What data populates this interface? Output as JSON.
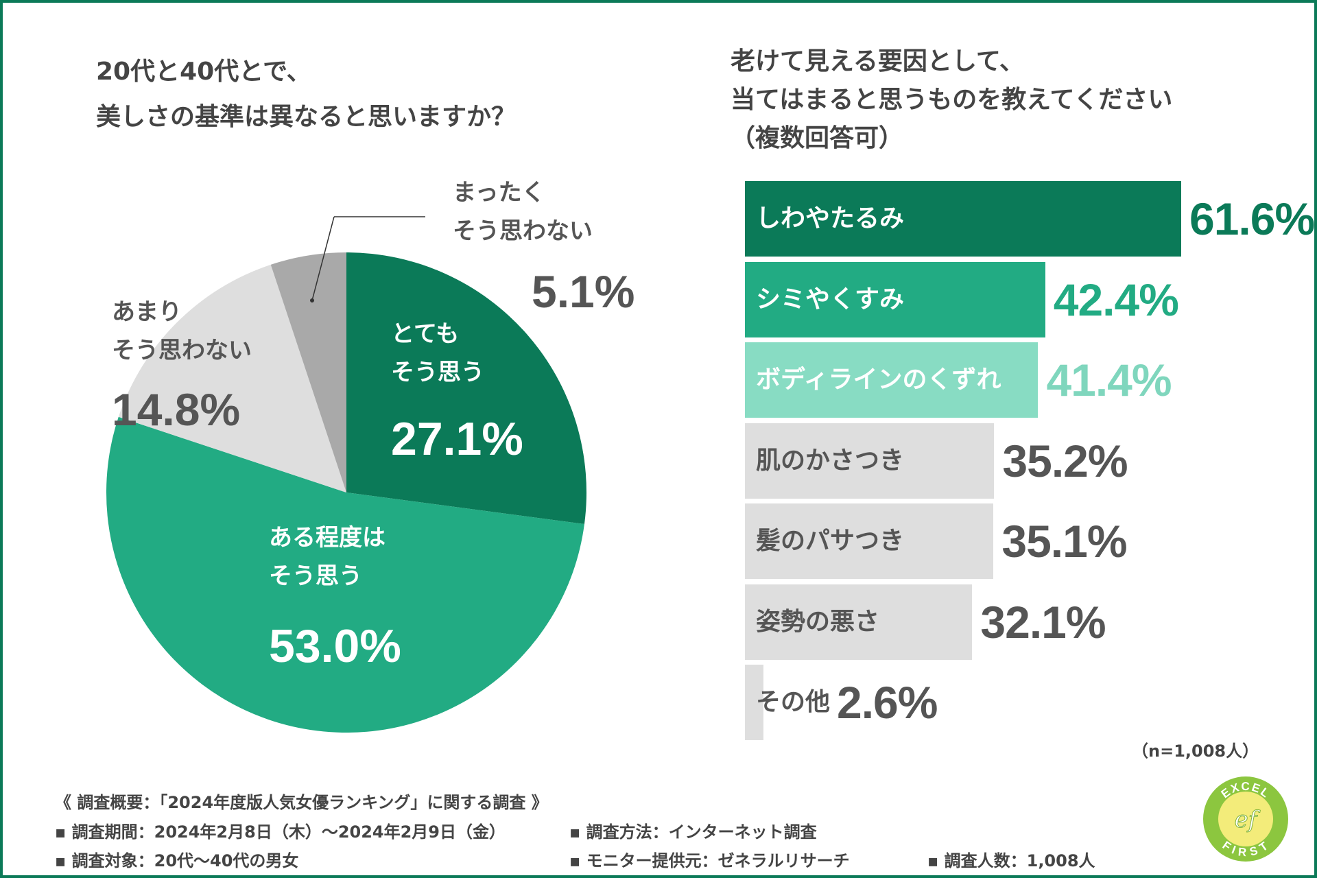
{
  "left_title": {
    "line1": "20代と40代とで、",
    "line2": "美しさの基準は異なると思いますか？"
  },
  "right_title": {
    "line1": "老けて見える要因として、",
    "line2": "当てはまると思うものを教えてください",
    "line3": "（複数回答可）"
  },
  "chart_data": [
    {
      "type": "pie",
      "title": "20代と40代とで、美しさの基準は異なると思いますか？",
      "slices": [
        {
          "name_line1": "とても",
          "name_line2": "そう思う",
          "value": 27.1,
          "label": "27.1%",
          "color": "#0b7a58"
        },
        {
          "name_line1": "ある程度は",
          "name_line2": "そう思う",
          "value": 53.0,
          "label": "53.0%",
          "color": "#22ab83"
        },
        {
          "name_line1": "あまり",
          "name_line2": "そう思わない",
          "value": 14.8,
          "label": "14.8%",
          "color": "#dedede"
        },
        {
          "name_line1": "まったく",
          "name_line2": "そう思わない",
          "value": 5.1,
          "label": "5.1%",
          "color": "#a9a9a9"
        }
      ]
    },
    {
      "type": "bar",
      "orientation": "horizontal",
      "title": "老けて見える要因として、当てはまると思うものを教えてください（複数回答可）",
      "xlim": [
        0,
        100
      ],
      "categories": [
        "しわやたるみ",
        "シミやくすみ",
        "ボディラインのくずれ",
        "肌のかさつき",
        "髪のパサつき",
        "姿勢の悪さ",
        "その他"
      ],
      "values": [
        61.6,
        42.4,
        41.4,
        35.2,
        35.1,
        32.1,
        2.6
      ],
      "value_labels": [
        "61.6%",
        "42.4%",
        "41.4%",
        "35.2%",
        "35.1%",
        "32.1%",
        "2.6%"
      ],
      "bar_colors": [
        "#0b7a58",
        "#22ab83",
        "#88dcc3",
        "#dedede",
        "#dedede",
        "#dedede",
        "#dedede"
      ],
      "label_colors": [
        "#ffffff",
        "#ffffff",
        "#ffffff",
        "#555555",
        "#555555",
        "#555555",
        "#555555"
      ],
      "value_colors": [
        "#0b7a58",
        "#22ab83",
        "#7fd6bd",
        "#555555",
        "#555555",
        "#555555",
        "#555555"
      ],
      "note": "（n=1,008人）"
    }
  ],
  "footer": {
    "summary": "《 調査概要：「2024年度版人気女優ランキング」に関する調査 》",
    "period": "▪ 調査期間：2024年2月8日（木）〜2024年2月9日（金）",
    "method": "▪ 調査方法：インターネット調査",
    "target": "▪ 調査対象：20代〜40代の男女",
    "provider": "▪ モニター提供元：ゼネラルリサーチ",
    "count": "▪ 調査人数：1,008人"
  },
  "logo": {
    "top_text": "EXCEL",
    "bottom_text": "FIRST",
    "mark": "ef"
  },
  "colors": {
    "brand": "#0b7a58",
    "accent": "#22ab83",
    "light": "#88dcc3",
    "grey": "#dedede",
    "dark_grey": "#a9a9a9"
  }
}
